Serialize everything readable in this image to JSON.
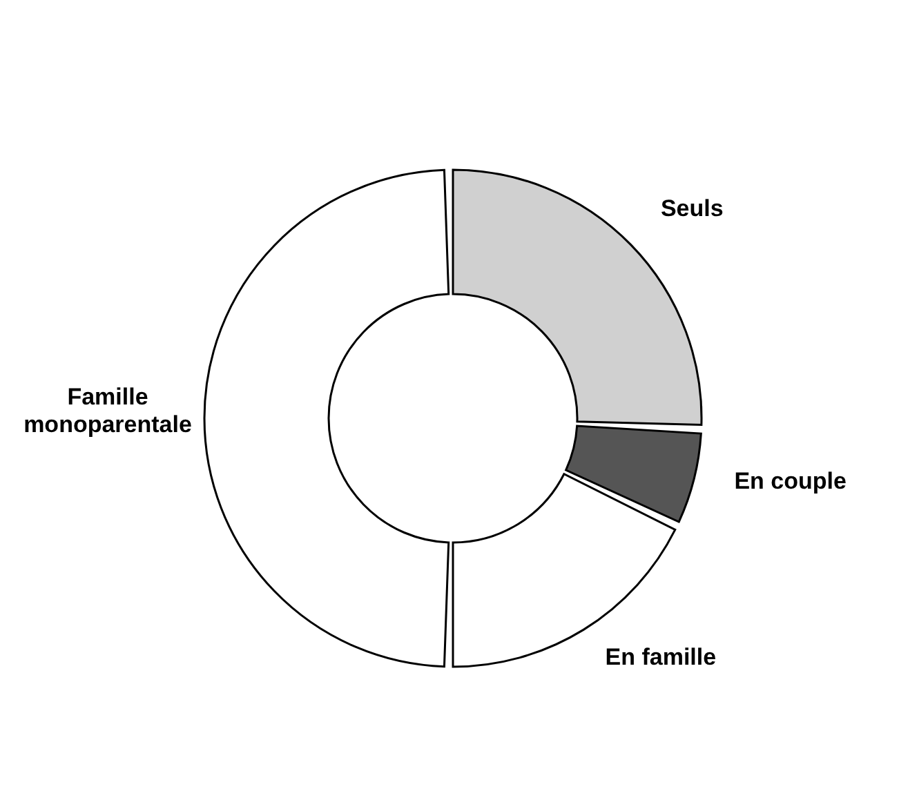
{
  "chart_data": {
    "type": "donut",
    "categories": [
      "Seuls",
      "En couple",
      "En famille",
      "Famille monoparentale"
    ],
    "values": [
      26,
      6,
      18,
      50
    ],
    "colors": [
      "#d0d0d0",
      "#555555",
      "#ffffff",
      "#ffffff"
    ]
  }
}
